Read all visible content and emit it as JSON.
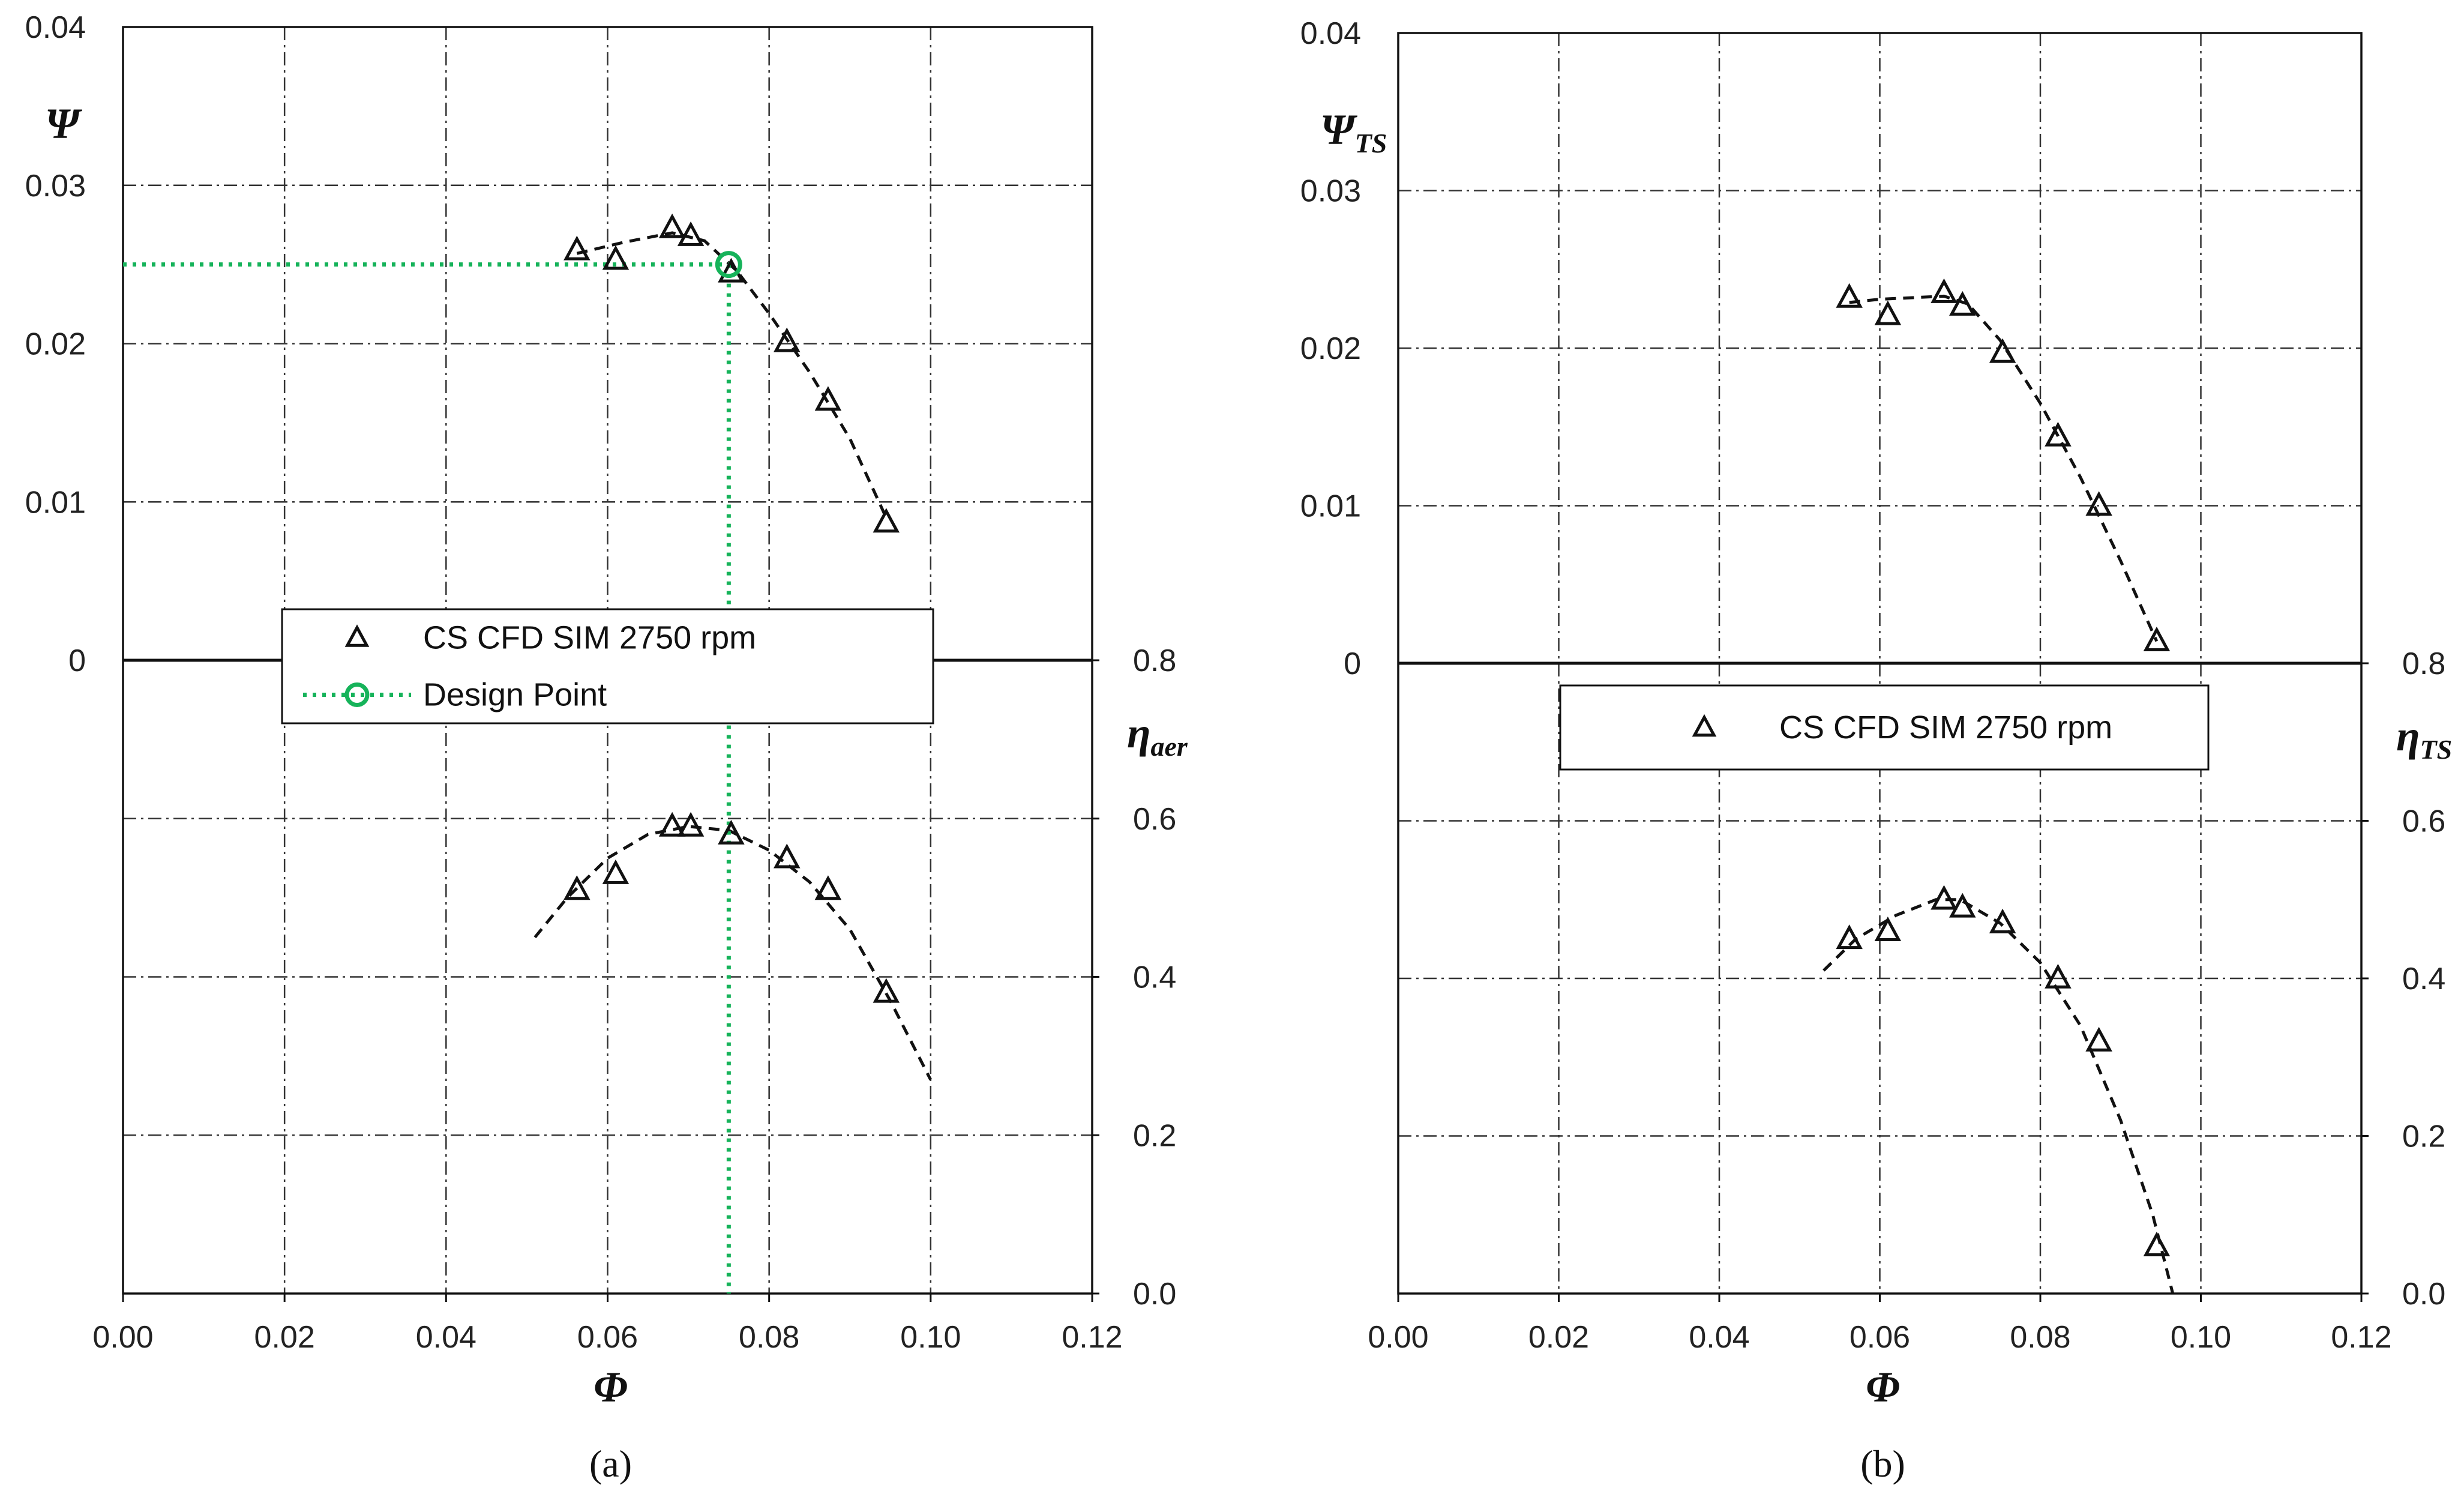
{
  "chart_data": [
    {
      "panel": "(a)",
      "type": "scatter",
      "xlabel": "Φ",
      "y_top_label": "Ψ",
      "y_top_label_sub": "",
      "y_bottom_label": "η",
      "y_bottom_label_sub": "aer",
      "xlim": [
        0,
        0.12
      ],
      "xticks": [
        "0.00",
        "0.02",
        "0.04",
        "0.06",
        "0.08",
        "0.10",
        "0.12"
      ],
      "ylim_top": [
        0,
        0.04
      ],
      "yticks_top": [
        "0",
        "0.01",
        "0.02",
        "0.03",
        "0.04"
      ],
      "ylim_bottom": [
        0,
        0.8
      ],
      "yticks_bottom": [
        "0.0",
        "0.2",
        "0.4",
        "0.6",
        "0.8"
      ],
      "grid": true,
      "series": [
        {
          "name": "CS CFD SIM 2750 rpm",
          "marker": "triangle",
          "psi": [
            [
              0.0562,
              0.0259
            ],
            [
              0.061,
              0.0253
            ],
            [
              0.068,
              0.0273
            ],
            [
              0.0703,
              0.0268
            ],
            [
              0.0753,
              0.0245
            ],
            [
              0.0822,
              0.0201
            ],
            [
              0.0873,
              0.0164
            ],
            [
              0.0945,
              0.0087
            ]
          ],
          "eta": [
            [
              0.0562,
              0.51
            ],
            [
              0.061,
              0.53
            ],
            [
              0.068,
              0.59
            ],
            [
              0.0703,
              0.59
            ],
            [
              0.0753,
              0.58
            ],
            [
              0.0822,
              0.55
            ],
            [
              0.0873,
              0.51
            ],
            [
              0.0945,
              0.38
            ]
          ]
        }
      ],
      "fit_psi": [
        [
          0.0562,
          0.0257
        ],
        [
          0.062,
          0.0264
        ],
        [
          0.068,
          0.027
        ],
        [
          0.072,
          0.0265
        ],
        [
          0.076,
          0.0246
        ],
        [
          0.08,
          0.0219
        ],
        [
          0.085,
          0.0182
        ],
        [
          0.09,
          0.014
        ],
        [
          0.0945,
          0.009
        ]
      ],
      "fit_eta": [
        [
          0.051,
          0.45
        ],
        [
          0.055,
          0.5
        ],
        [
          0.06,
          0.55
        ],
        [
          0.065,
          0.58
        ],
        [
          0.07,
          0.59
        ],
        [
          0.075,
          0.585
        ],
        [
          0.08,
          0.56
        ],
        [
          0.085,
          0.52
        ],
        [
          0.09,
          0.46
        ],
        [
          0.095,
          0.37
        ],
        [
          0.1,
          0.27
        ]
      ],
      "design_point": {
        "label": "Design Point",
        "phi": 0.075,
        "psi": 0.025
      },
      "legend": [
        "CS CFD SIM 2750 rpm",
        "Design Point"
      ]
    },
    {
      "panel": "(b)",
      "type": "scatter",
      "xlabel": "Φ",
      "y_top_label": "Ψ",
      "y_top_label_sub": "TS",
      "y_bottom_label": "η",
      "y_bottom_label_sub": "TS",
      "xlim": [
        0,
        0.12
      ],
      "xticks": [
        "0.00",
        "0.02",
        "0.04",
        "0.06",
        "0.08",
        "0.10",
        "0.12"
      ],
      "ylim_top": [
        0,
        0.04
      ],
      "yticks_top": [
        "0",
        "0.01",
        "0.02",
        "0.03",
        "0.04"
      ],
      "ylim_bottom": [
        0,
        0.8
      ],
      "yticks_bottom": [
        "0.0",
        "0.2",
        "0.4",
        "0.6",
        "0.8"
      ],
      "grid": true,
      "series": [
        {
          "name": "CS CFD SIM 2750 rpm",
          "marker": "triangle",
          "psi": [
            [
              0.0562,
              0.0232
            ],
            [
              0.061,
              0.0221
            ],
            [
              0.068,
              0.0235
            ],
            [
              0.0703,
              0.0227
            ],
            [
              0.0753,
              0.0197
            ],
            [
              0.0822,
              0.0144
            ],
            [
              0.0873,
              0.01
            ],
            [
              0.0945,
              0.0014
            ]
          ],
          "eta": [
            [
              0.0562,
              0.45
            ],
            [
              0.061,
              0.46
            ],
            [
              0.068,
              0.5
            ],
            [
              0.0703,
              0.49
            ],
            [
              0.0753,
              0.47
            ],
            [
              0.0822,
              0.4
            ],
            [
              0.0873,
              0.32
            ],
            [
              0.0945,
              0.06
            ]
          ]
        }
      ],
      "fit_psi": [
        [
          0.0562,
          0.0229
        ],
        [
          0.06,
          0.0231
        ],
        [
          0.064,
          0.0232
        ],
        [
          0.068,
          0.0233
        ],
        [
          0.071,
          0.0228
        ],
        [
          0.075,
          0.0205
        ],
        [
          0.08,
          0.0165
        ],
        [
          0.085,
          0.0118
        ],
        [
          0.09,
          0.0065
        ],
        [
          0.0945,
          0.0014
        ]
      ],
      "fit_eta": [
        [
          0.053,
          0.41
        ],
        [
          0.057,
          0.45
        ],
        [
          0.062,
          0.48
        ],
        [
          0.067,
          0.5
        ],
        [
          0.07,
          0.5
        ],
        [
          0.075,
          0.47
        ],
        [
          0.08,
          0.42
        ],
        [
          0.085,
          0.34
        ],
        [
          0.09,
          0.22
        ],
        [
          0.094,
          0.1
        ],
        [
          0.0965,
          0.0
        ]
      ],
      "design_point": null,
      "legend": [
        "CS CFD SIM 2750 rpm"
      ]
    }
  ]
}
